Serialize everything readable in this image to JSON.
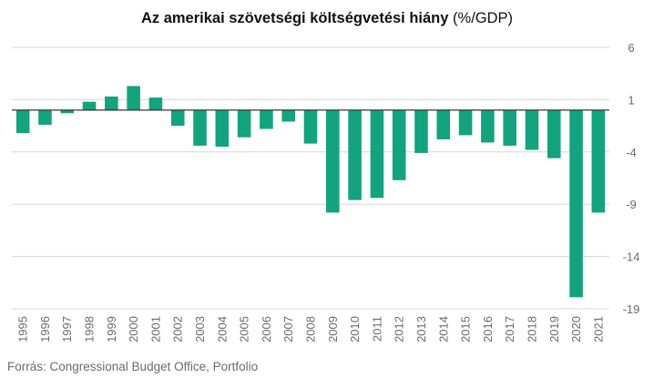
{
  "title": {
    "main": "Az amerikai szövetségi költségvetési hiány",
    "unit": " (%/GDP)"
  },
  "source": "Forrás: Congressional Budget Office, Portfolio",
  "colors": {
    "bar": "#12a37f",
    "grid": "#d6d6d6",
    "zero_line": "#333333",
    "tick_text": "#6b6b6b"
  },
  "chart_data": {
    "type": "bar",
    "title": "Az amerikai szövetségi költségvetési hiány (%/GDP)",
    "xlabel": "",
    "ylabel": "",
    "y_axis_position": "right",
    "grid": true,
    "legend": "none",
    "ylim": [
      -19,
      6
    ],
    "yticks": [
      6,
      1,
      -4,
      -9,
      -14,
      -19
    ],
    "categories": [
      "1995",
      "1996",
      "1997",
      "1998",
      "1999",
      "2000",
      "2001",
      "2002",
      "2003",
      "2004",
      "2005",
      "2006",
      "2007",
      "2008",
      "2009",
      "2010",
      "2011",
      "2012",
      "2013",
      "2014",
      "2015",
      "2016",
      "2017",
      "2018",
      "2019",
      "2020",
      "2021"
    ],
    "values": [
      -2.2,
      -1.4,
      -0.3,
      0.8,
      1.3,
      2.3,
      1.2,
      -1.5,
      -3.4,
      -3.5,
      -2.6,
      -1.8,
      -1.1,
      -3.2,
      -9.8,
      -8.6,
      -8.4,
      -6.7,
      -4.1,
      -2.8,
      -2.4,
      -3.1,
      -3.4,
      -3.8,
      -4.6,
      -17.9,
      -9.8
    ]
  }
}
